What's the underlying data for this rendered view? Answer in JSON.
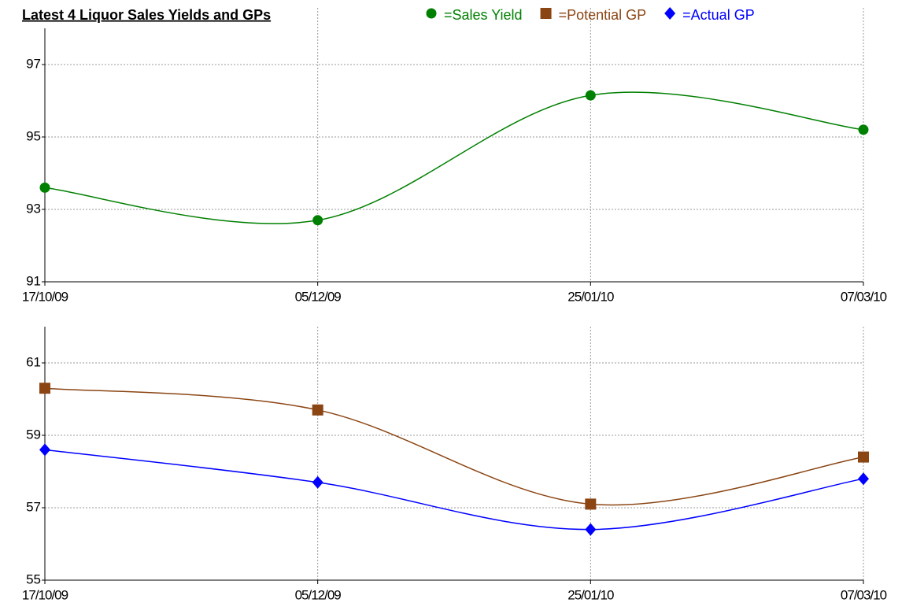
{
  "chart_data": [
    {
      "type": "line",
      "title": "Latest 4 Liquor Sales Yields and GPs",
      "categories": [
        "17/10/09",
        "05/12/09",
        "25/01/10",
        "07/03/10"
      ],
      "series": [
        {
          "name": "=Sales Yield",
          "color": "#008000",
          "marker": "circle",
          "values": [
            93.6,
            92.7,
            96.15,
            95.2
          ]
        }
      ],
      "ylim": [
        91,
        98
      ],
      "yticks": [
        91,
        93,
        95,
        97
      ],
      "grid": true,
      "smooth": true
    },
    {
      "type": "line",
      "categories": [
        "17/10/09",
        "05/12/09",
        "25/01/10",
        "07/03/10"
      ],
      "series": [
        {
          "name": "=Potential GP",
          "color": "#8b4513",
          "marker": "square",
          "values": [
            60.3,
            59.7,
            57.1,
            58.4
          ]
        },
        {
          "name": "=Actual GP",
          "color": "#0000ff",
          "marker": "diamond",
          "values": [
            58.6,
            57.7,
            56.4,
            57.8
          ]
        }
      ],
      "ylim": [
        55,
        62
      ],
      "yticks": [
        55,
        57,
        59,
        61
      ],
      "grid": true,
      "smooth": true
    }
  ]
}
